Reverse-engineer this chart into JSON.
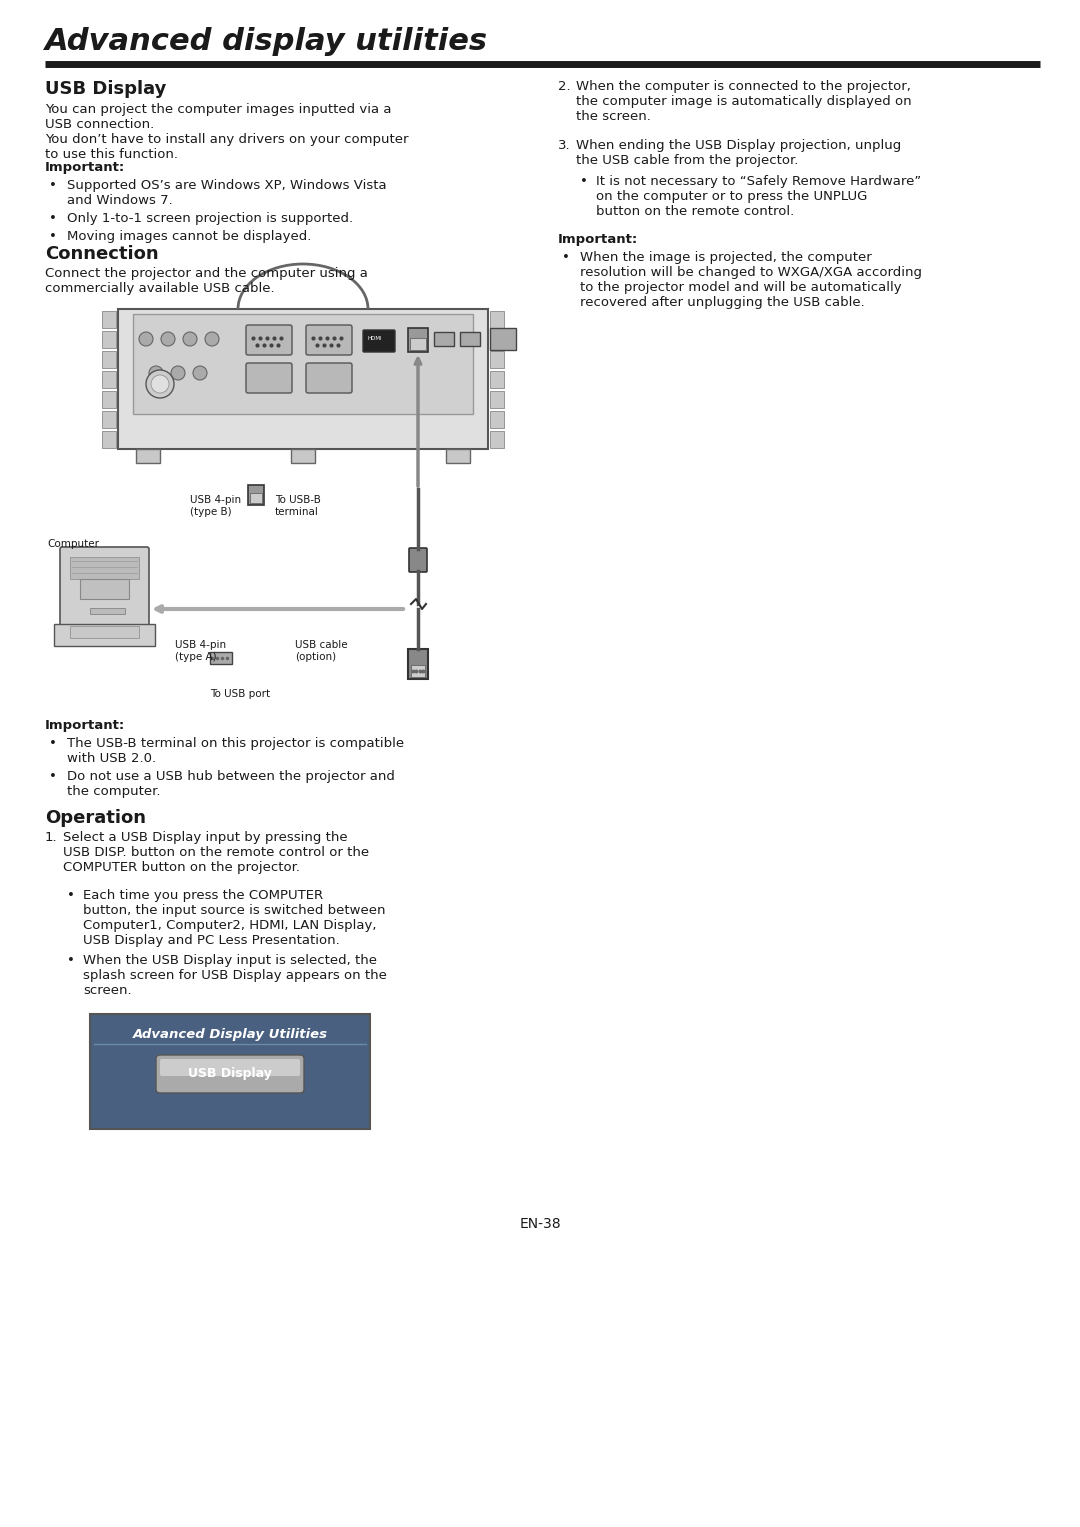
{
  "title": "Advanced display utilities",
  "background_color": "#ffffff",
  "text_color": "#1a1a1a",
  "page_number": "EN-38",
  "left_column": {
    "section1_title": "USB Display",
    "section1_body": "You can project the computer images inputted via a\nUSB connection.\nYou don’t have to install any drivers on your computer\nto use this function.",
    "important1_title": "Important:",
    "important1_items": [
      "Supported OS’s are Windows XP, Windows Vista\nand Windows 7.",
      "Only 1-to-1 screen projection is supported.",
      "Moving images cannot be displayed."
    ],
    "section2_title": "Connection",
    "section2_body": "Connect the projector and the computer using a\ncommercially available USB cable.",
    "important3_title": "Important:",
    "important3_items": [
      "The USB-B terminal on this projector is compatible\nwith USB 2.0.",
      "Do not use a USB hub between the projector and\nthe computer."
    ],
    "section3_title": "Operation",
    "operation_text": "Select a USB Display input by pressing the\nUSB DISP. button on the remote control or the\nCOMPUTER button on the projector.",
    "operation_subitems": [
      "Each time you press the COMPUTER\nbutton, the input source is switched between\nComputer1, Computer2, HDMI, LAN Display,\nUSB Display and PC Less Presentation.",
      "When the USB Display input is selected, the\nsplash screen for USB Display appears on the\nscreen."
    ]
  },
  "right_column": {
    "item2_text": "When the computer is connected to the projector,\nthe computer image is automatically displayed on\nthe screen.",
    "item3_text": "When ending the USB Display projection, unplug\nthe USB cable from the projector.",
    "item3_sub": "It is not necessary to “Safely Remove Hardware”\non the computer or to press the UNPLUG\nbutton on the remote control.",
    "important2_title": "Important:",
    "important2_items": [
      "When the image is projected, the computer\nresolution will be changed to WXGA/XGA according\nto the projector model and will be automatically\nrecovered after unplugging the USB cable."
    ]
  },
  "diagram_labels": {
    "usb_4pin_b": "USB 4-pin\n(type B)",
    "to_usb_b": "To USB-B\nterminal",
    "computer": "Computer",
    "usb_4pin_a": "USB 4-pin\n(type A)",
    "usb_cable": "USB cable\n(option)",
    "to_usb_port": "To USB port"
  },
  "splash_screen": {
    "title": "Advanced Display Utilities",
    "button": "USB Display",
    "bg_color": "#4a6080",
    "button_color": "#888888",
    "title_color": "#ffffff",
    "button_text_color": "#ffffff"
  }
}
